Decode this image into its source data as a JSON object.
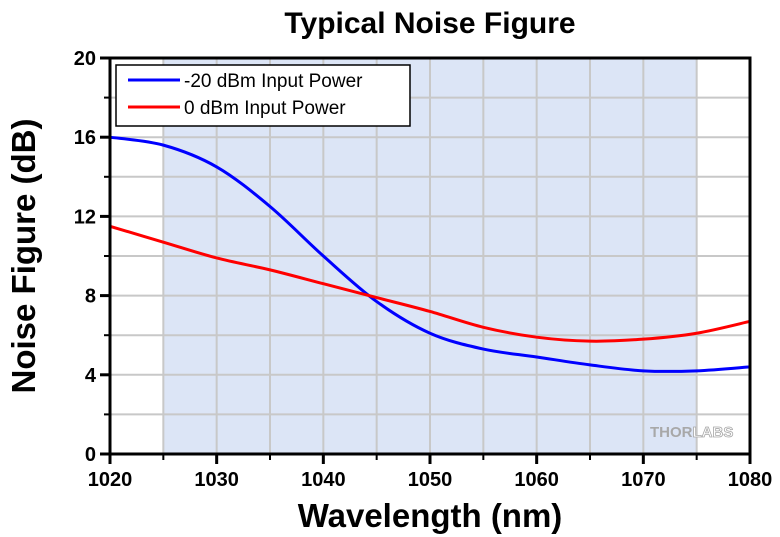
{
  "chart_data": {
    "type": "line",
    "title": "Typical Noise Figure",
    "xlabel": "Wavelength (nm)",
    "ylabel": "Noise Figure (dB)",
    "xlim": [
      1020,
      1080
    ],
    "ylim": [
      0,
      20
    ],
    "x_ticks": [
      1020,
      1030,
      1040,
      1050,
      1060,
      1070,
      1080
    ],
    "x_tick_labels": [
      "1020",
      "1030",
      "1040",
      "1050",
      "1060",
      "1070",
      "1080"
    ],
    "y_ticks": [
      0,
      4,
      8,
      12,
      16,
      20
    ],
    "y_tick_labels": [
      "0",
      "4",
      "8",
      "12",
      "16",
      "20"
    ],
    "grid": true,
    "shaded_region": [
      1025,
      1075
    ],
    "legend_position": "top-left",
    "series": [
      {
        "name": "-20 dBm Input Power",
        "color": "#0000ff",
        "x": [
          1020,
          1025,
          1030,
          1035,
          1040,
          1045,
          1050,
          1055,
          1060,
          1065,
          1070,
          1075,
          1080
        ],
        "y": [
          16.0,
          15.6,
          14.5,
          12.5,
          10.0,
          7.7,
          6.1,
          5.3,
          4.9,
          4.5,
          4.2,
          4.2,
          4.4
        ]
      },
      {
        "name": "0 dBm Input Power",
        "color": "#ff0000",
        "x": [
          1020,
          1025,
          1030,
          1035,
          1040,
          1045,
          1050,
          1055,
          1060,
          1065,
          1070,
          1075,
          1080
        ],
        "y": [
          11.5,
          10.7,
          9.9,
          9.3,
          8.6,
          7.9,
          7.2,
          6.4,
          5.9,
          5.7,
          5.8,
          6.1,
          6.7
        ]
      }
    ]
  },
  "watermark": {
    "text_bold": "THOR",
    "text_light": "LABS"
  },
  "colors": {
    "shade": "#dce5f6",
    "grid": "#c8c8c8"
  }
}
